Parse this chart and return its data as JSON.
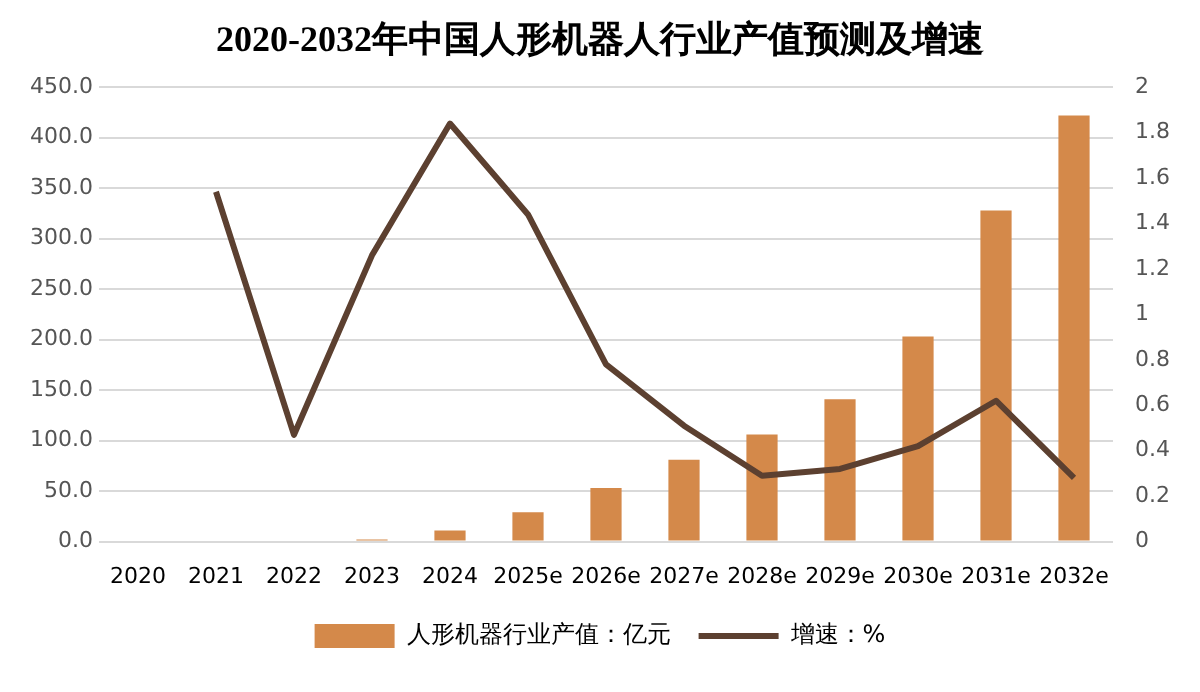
{
  "chart_data": {
    "type": "bar",
    "title": "2020-2032年中国人形机器人行业产值预测及增速",
    "categories": [
      "2020",
      "2021",
      "2022",
      "2023",
      "2024",
      "2025e",
      "2026e",
      "2027e",
      "2028e",
      "2029e",
      "2030e",
      "2031e",
      "2032e"
    ],
    "series": [
      {
        "name": "人形机器行业产值：亿元",
        "color": "#d4894a",
        "values": [
          0,
          0,
          0,
          2,
          11,
          29,
          53,
          81,
          106,
          141,
          203,
          328,
          422
        ]
      },
      {
        "name": "增速：%",
        "type": "line",
        "axis": "y2",
        "color": "#5c4030",
        "values": [
          null,
          1.54,
          0.47,
          1.26,
          1.84,
          1.44,
          0.78,
          0.51,
          0.29,
          0.32,
          0.42,
          0.62,
          0.28
        ]
      }
    ],
    "ylim": [
      0,
      450
    ],
    "yticks": [
      {
        "value": 0,
        "label": "0.0"
      },
      {
        "value": 50,
        "label": "50.0"
      },
      {
        "value": 100,
        "label": "100.0"
      },
      {
        "value": 150,
        "label": "150.0"
      },
      {
        "value": 200,
        "label": "200.0"
      },
      {
        "value": 250,
        "label": "250.0"
      },
      {
        "value": 300,
        "label": "300.0"
      },
      {
        "value": 350,
        "label": "350.0"
      },
      {
        "value": 400,
        "label": "400.0"
      },
      {
        "value": 450,
        "label": "450.0"
      }
    ],
    "y2lim": [
      0,
      2
    ],
    "y2ticks": [
      0,
      0.2,
      0.4,
      0.6,
      0.8,
      1,
      1.2,
      1.4,
      1.6,
      1.8,
      2
    ],
    "grid": "y",
    "legend": "bottom",
    "marker": "none",
    "line_style": "solid"
  }
}
